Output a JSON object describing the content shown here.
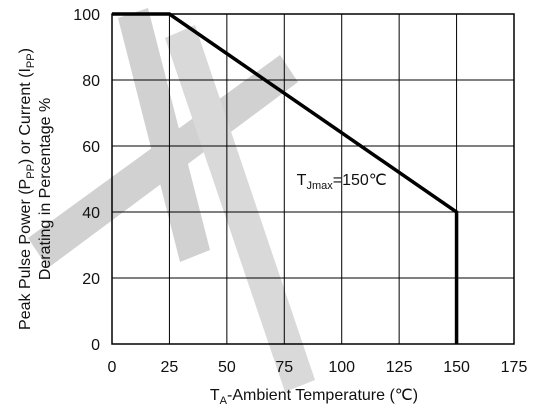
{
  "chart_data": {
    "type": "line",
    "xlabel": {
      "pre": "T",
      "sub": "A",
      "post": "-Ambient Temperature (℃)"
    },
    "ylabel": {
      "line1": {
        "parts": [
          {
            "text": "Peak Pulse Power (P"
          },
          {
            "text": "PP",
            "sub": true
          },
          {
            "text": ") or Current (I"
          },
          {
            "text": "PP",
            "sub": true
          },
          {
            "text": ")"
          }
        ]
      },
      "line2": "Derating in Percentage %"
    },
    "xlim": [
      0,
      175
    ],
    "ylim": [
      0,
      100
    ],
    "x_ticks": [
      "0",
      "25",
      "50",
      "75",
      "100",
      "125",
      "150",
      "175"
    ],
    "y_ticks": [
      "0",
      "20",
      "40",
      "60",
      "80",
      "100"
    ],
    "grid": true,
    "series": [
      {
        "x": [
          0,
          25,
          150,
          150
        ],
        "y": [
          100,
          100,
          40,
          0
        ]
      }
    ],
    "annotation": {
      "pre": "T",
      "sub": "Jmax",
      "post": "=150℃",
      "x": 100,
      "y": 50
    },
    "colors": {
      "line": "#000000",
      "grid": "#000000",
      "watermark": "#c8c8c8"
    }
  }
}
